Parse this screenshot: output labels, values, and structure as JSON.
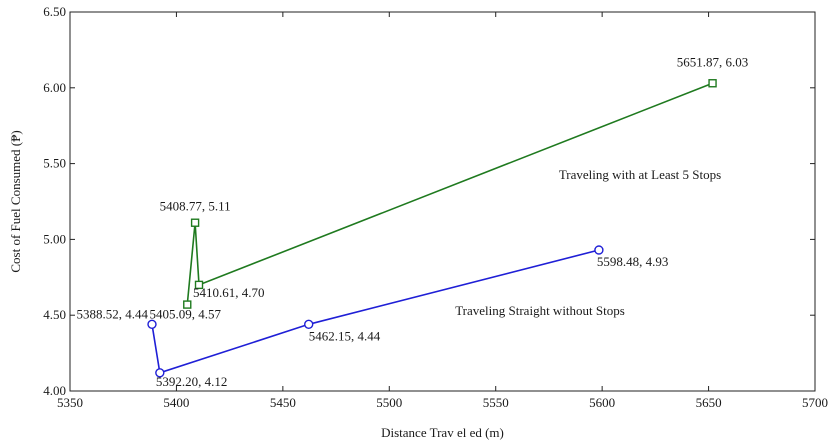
{
  "chart_data": {
    "type": "line",
    "title": "",
    "xlabel": "Distance Trav el ed (m)",
    "ylabel": "Cost of Fuel Consumed (₱)",
    "xlim": [
      5350,
      5700
    ],
    "ylim": [
      4.0,
      6.5
    ],
    "x_ticks": [
      "5350",
      "5400",
      "5450",
      "5500",
      "5550",
      "5600",
      "5650",
      "5700"
    ],
    "y_ticks": [
      "4.00",
      "4.50",
      "5.00",
      "5.50",
      "6.00",
      "6.50"
    ],
    "grid": false,
    "series": [
      {
        "name": "Traveling with at Least 5 Stops",
        "color": "#1f7a1f",
        "marker": "square",
        "points": [
          {
            "x": 5405.09,
            "y": 4.57,
            "label": "5405.09, 4.57"
          },
          {
            "x": 5408.77,
            "y": 5.11,
            "label": "5408.77, 5.11"
          },
          {
            "x": 5410.61,
            "y": 4.7,
            "label": "5410.61, 4.70"
          },
          {
            "x": 5651.87,
            "y": 6.03,
            "label": "5651.87, 6.03"
          }
        ]
      },
      {
        "name": "Traveling Straight without Stops",
        "color": "#1f1fd6",
        "marker": "circle",
        "points": [
          {
            "x": 5388.52,
            "y": 4.44,
            "label": "5388.52, 4.44"
          },
          {
            "x": 5392.2,
            "y": 4.12,
            "label": "5392.20, 4.12"
          },
          {
            "x": 5462.15,
            "y": 4.44,
            "label": "5462.15, 4.44"
          },
          {
            "x": 5598.48,
            "y": 4.93,
            "label": "5598.48, 4.93"
          }
        ]
      }
    ]
  }
}
